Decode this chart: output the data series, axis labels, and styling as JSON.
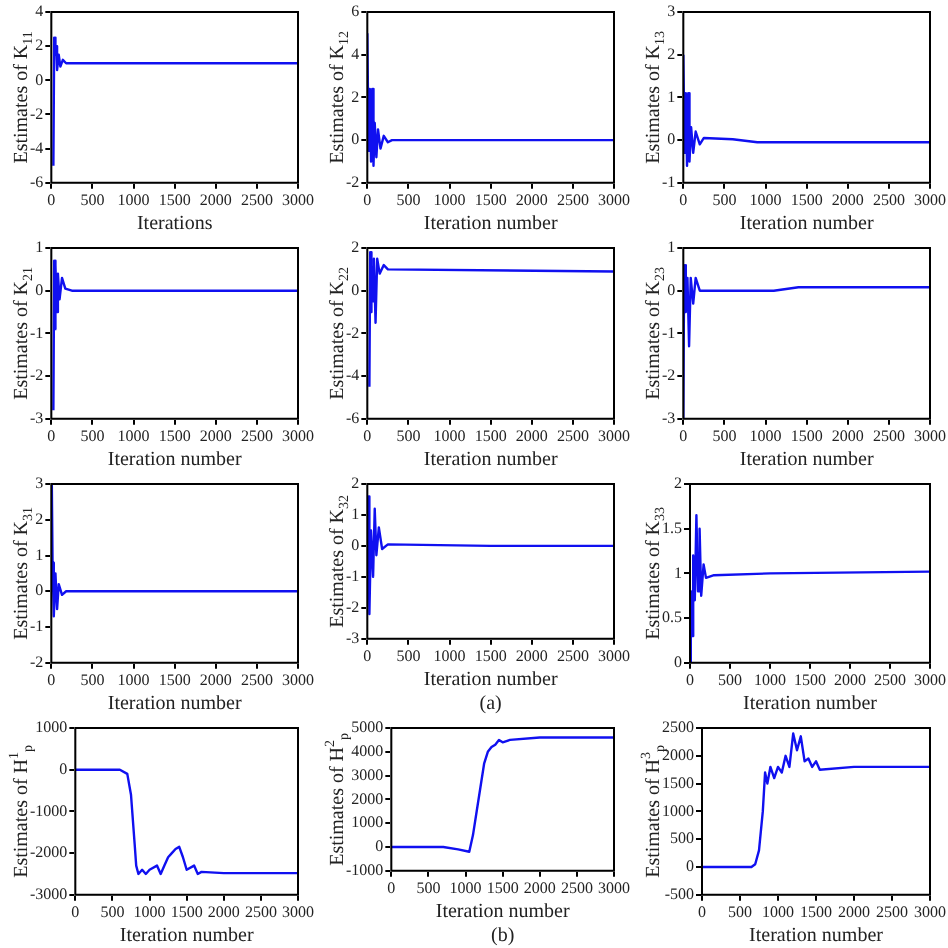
{
  "chart_data": [
    {
      "type": "line",
      "xlabel": "Iterations",
      "ylabel": "Estimates of K$_{11}$",
      "xlim": [
        0,
        3000
      ],
      "xticks": [
        0,
        500,
        1000,
        1500,
        2000,
        2500,
        3000
      ],
      "ylim": [
        -6,
        4
      ],
      "yticks": [
        -6,
        -4,
        -2,
        0,
        2,
        4
      ],
      "grid": false,
      "legend": false,
      "marker": "none",
      "series": [
        {
          "color": "#1010f0",
          "x": [
            25,
            35,
            50,
            60,
            70,
            90,
            110,
            140,
            180,
            250,
            3000
          ],
          "values": [
            -5,
            2.5,
            1.5,
            2,
            0.6,
            1.5,
            0.8,
            1.2,
            1,
            1,
            1
          ]
        }
      ]
    },
    {
      "type": "line",
      "xlabel": "Iteration number",
      "ylabel": "Estimates of K$_{12}$",
      "xlim": [
        0,
        3000
      ],
      "xticks": [
        0,
        500,
        1000,
        1500,
        2000,
        2500,
        3000
      ],
      "ylim": [
        -2,
        6
      ],
      "yticks": [
        -2,
        0,
        2,
        4,
        6
      ],
      "grid": false,
      "legend": false,
      "marker": "none",
      "series": [
        {
          "color": "#1010f0",
          "x": [
            0,
            15,
            30,
            45,
            60,
            75,
            90,
            110,
            130,
            160,
            200,
            250,
            300,
            3000
          ],
          "values": [
            5,
            -0.5,
            2.4,
            -1,
            2.4,
            -1.2,
            0.8,
            -0.8,
            0.5,
            -0.4,
            0.2,
            -0.1,
            0,
            0
          ]
        }
      ]
    },
    {
      "type": "line",
      "xlabel": "Iteration number",
      "ylabel": "Estimates of K$_{13}$",
      "xlim": [
        0,
        3000
      ],
      "xticks": [
        0,
        500,
        1000,
        1500,
        2000,
        2500,
        3000
      ],
      "ylim": [
        -1,
        3
      ],
      "yticks": [
        -1,
        0,
        1,
        2,
        3
      ],
      "grid": false,
      "legend": false,
      "marker": "none",
      "series": [
        {
          "color": "#1010f0",
          "x": [
            0,
            15,
            30,
            45,
            60,
            75,
            95,
            120,
            150,
            200,
            250,
            600,
            900,
            1200,
            3000
          ],
          "values": [
            2,
            -0.3,
            1.1,
            -0.6,
            1.1,
            -0.5,
            0.3,
            -0.3,
            0.2,
            -0.1,
            0.05,
            0.02,
            -0.05,
            -0.05,
            -0.05
          ]
        }
      ]
    },
    {
      "type": "line",
      "xlabel": "Iteration number",
      "ylabel": "Estimates of K$_{21}$",
      "xlim": [
        0,
        3000
      ],
      "xticks": [
        0,
        500,
        1000,
        1500,
        2000,
        2500,
        3000
      ],
      "ylim": [
        -3,
        1
      ],
      "yticks": [
        -3,
        -2,
        -1,
        0,
        1
      ],
      "grid": false,
      "legend": false,
      "marker": "none",
      "series": [
        {
          "color": "#1010f0",
          "x": [
            25,
            35,
            45,
            55,
            65,
            80,
            100,
            130,
            170,
            250,
            3000
          ],
          "values": [
            -2.8,
            0.7,
            -0.9,
            0.6,
            -0.5,
            0.4,
            -0.2,
            0.3,
            0.05,
            0,
            0
          ]
        }
      ]
    },
    {
      "type": "line",
      "xlabel": "Iteration number",
      "ylabel": "Estimates of K$_{22}$",
      "xlim": [
        0,
        3000
      ],
      "xticks": [
        0,
        500,
        1000,
        1500,
        2000,
        2500,
        3000
      ],
      "ylim": [
        -6,
        2
      ],
      "yticks": [
        -6,
        -4,
        -2,
        0,
        2
      ],
      "grid": false,
      "legend": false,
      "marker": "none",
      "series": [
        {
          "color": "#1010f0",
          "x": [
            25,
            35,
            45,
            55,
            65,
            80,
            100,
            120,
            150,
            200,
            250,
            3000
          ],
          "values": [
            -4.5,
            1.8,
            -1,
            1.2,
            -0.5,
            1.5,
            -1.5,
            1.5,
            0.8,
            1.2,
            1,
            0.9
          ]
        }
      ]
    },
    {
      "type": "line",
      "xlabel": "Iteration number",
      "ylabel": "Estimates of K$_{23}$",
      "xlim": [
        0,
        3000
      ],
      "xticks": [
        0,
        500,
        1000,
        1500,
        2000,
        2500,
        3000
      ],
      "ylim": [
        -3,
        1
      ],
      "yticks": [
        -3,
        -2,
        -1,
        0,
        1
      ],
      "grid": false,
      "legend": false,
      "marker": "none",
      "series": [
        {
          "color": "#1010f0",
          "x": [
            0,
            10,
            30,
            50,
            70,
            90,
            120,
            150,
            200,
            1100,
            1400,
            3000
          ],
          "values": [
            -3,
            0.6,
            -0.5,
            0.3,
            -1.3,
            0.3,
            -0.3,
            0.3,
            0,
            0,
            0.08,
            0.08
          ]
        }
      ]
    },
    {
      "type": "line",
      "xlabel": "Iteration number",
      "ylabel": "Estimates of K$_{31}$",
      "xlim": [
        0,
        3000
      ],
      "xticks": [
        0,
        500,
        1000,
        1500,
        2000,
        2500,
        3000
      ],
      "ylim": [
        -2,
        3
      ],
      "yticks": [
        -2,
        -1,
        0,
        1,
        2,
        3
      ],
      "grid": false,
      "legend": false,
      "marker": "none",
      "series": [
        {
          "color": "#1010f0",
          "x": [
            6,
            15,
            30,
            50,
            70,
            90,
            130,
            180,
            3000
          ],
          "values": [
            3,
            0.8,
            -0.7,
            0.5,
            -0.5,
            0.2,
            -0.1,
            0,
            0
          ]
        }
      ]
    },
    {
      "type": "line",
      "xlabel": "Iteration number",
      "ylabel": "Estimates of K$_{32}$",
      "annotations": [
        "(a)"
      ],
      "xlim": [
        0,
        3000
      ],
      "xticks": [
        0,
        500,
        1000,
        1500,
        2000,
        2500,
        3000
      ],
      "ylim": [
        -3,
        2
      ],
      "yticks": [
        -3,
        -2,
        -1,
        0,
        1,
        2
      ],
      "grid": false,
      "legend": false,
      "marker": "none",
      "series": [
        {
          "color": "#1010f0",
          "x": [
            0,
            10,
            25,
            45,
            70,
            90,
            110,
            140,
            180,
            250,
            1500,
            3000
          ],
          "values": [
            -1,
            1.6,
            -2.2,
            0.5,
            -1,
            1.2,
            -0.3,
            0.6,
            -0.1,
            0.05,
            0,
            0
          ]
        }
      ]
    },
    {
      "type": "line",
      "xlabel": "Iteration number",
      "ylabel": "Estimates of K$_{33}$",
      "xlim": [
        0,
        3000
      ],
      "xticks": [
        0,
        500,
        1000,
        1500,
        2000,
        2500,
        3000
      ],
      "ylim": [
        0,
        2
      ],
      "yticks": [
        0,
        0.5,
        1,
        1.5,
        2
      ],
      "grid": false,
      "legend": false,
      "marker": "none",
      "series": [
        {
          "color": "#1010f0",
          "x": [
            0,
            10,
            25,
            40,
            60,
            80,
            100,
            120,
            140,
            170,
            200,
            300,
            1000,
            3000
          ],
          "values": [
            0,
            0.8,
            0.3,
            1.2,
            0.7,
            1.65,
            0.8,
            1.5,
            0.75,
            1.1,
            0.95,
            0.98,
            1,
            1.02
          ]
        }
      ]
    },
    {
      "type": "line",
      "xlabel": "Iteration number",
      "ylabel": "Estimates of H$^{1}$$_{p}$",
      "xlim": [
        0,
        3000
      ],
      "xticks": [
        0,
        500,
        1000,
        1500,
        2000,
        2500,
        3000
      ],
      "ylim": [
        -3000,
        1000
      ],
      "yticks": [
        -3000,
        -2000,
        -1000,
        0,
        1000
      ],
      "grid": false,
      "legend": false,
      "marker": "none",
      "series": [
        {
          "color": "#1010f0",
          "x": [
            0,
            600,
            700,
            750,
            800,
            820,
            850,
            900,
            950,
            1000,
            1100,
            1150,
            1200,
            1250,
            1300,
            1350,
            1400,
            1450,
            1500,
            1600,
            1650,
            1700,
            2000,
            3000
          ],
          "values": [
            0,
            0,
            -100,
            -600,
            -1800,
            -2300,
            -2500,
            -2400,
            -2500,
            -2400,
            -2300,
            -2500,
            -2300,
            -2100,
            -2000,
            -1900,
            -1850,
            -2100,
            -2400,
            -2300,
            -2500,
            -2450,
            -2480,
            -2480
          ]
        }
      ]
    },
    {
      "type": "line",
      "xlabel": "Iteration number",
      "ylabel": "Estimates of H$^{2}$$_{p}$",
      "annotations": [
        "(b)"
      ],
      "xlim": [
        0,
        3000
      ],
      "xticks": [
        0,
        500,
        1000,
        1500,
        2000,
        2500,
        3000
      ],
      "ylim": [
        -1000,
        5000
      ],
      "yticks": [
        -1000,
        0,
        1000,
        2000,
        3000,
        4000,
        5000
      ],
      "grid": false,
      "legend": false,
      "marker": "none",
      "series": [
        {
          "color": "#1010f0",
          "x": [
            0,
            700,
            900,
            1050,
            1100,
            1150,
            1200,
            1250,
            1300,
            1350,
            1400,
            1450,
            1500,
            1600,
            2000,
            3000
          ],
          "values": [
            0,
            0,
            -100,
            -200,
            500,
            1500,
            2500,
            3500,
            4000,
            4200,
            4300,
            4500,
            4400,
            4500,
            4600,
            4600
          ]
        }
      ]
    },
    {
      "type": "line",
      "xlabel": "Iteration number",
      "ylabel": "Estimates of H$^{3}$$_{p}$",
      "xlim": [
        0,
        3000
      ],
      "xticks": [
        0,
        500,
        1000,
        1500,
        2000,
        2500,
        3000
      ],
      "ylim": [
        -500,
        2500
      ],
      "yticks": [
        -500,
        0,
        500,
        1000,
        1500,
        2000,
        2500
      ],
      "grid": false,
      "legend": false,
      "marker": "none",
      "series": [
        {
          "color": "#1010f0",
          "x": [
            0,
            650,
            700,
            750,
            800,
            830,
            860,
            900,
            950,
            1000,
            1050,
            1100,
            1150,
            1200,
            1250,
            1300,
            1350,
            1400,
            1450,
            1500,
            1550,
            2000,
            3000
          ],
          "values": [
            0,
            0,
            50,
            300,
            1000,
            1700,
            1500,
            1800,
            1600,
            1800,
            1700,
            2000,
            1800,
            2400,
            2100,
            2350,
            1900,
            1950,
            1800,
            1900,
            1750,
            1800,
            1800
          ]
        }
      ]
    }
  ]
}
